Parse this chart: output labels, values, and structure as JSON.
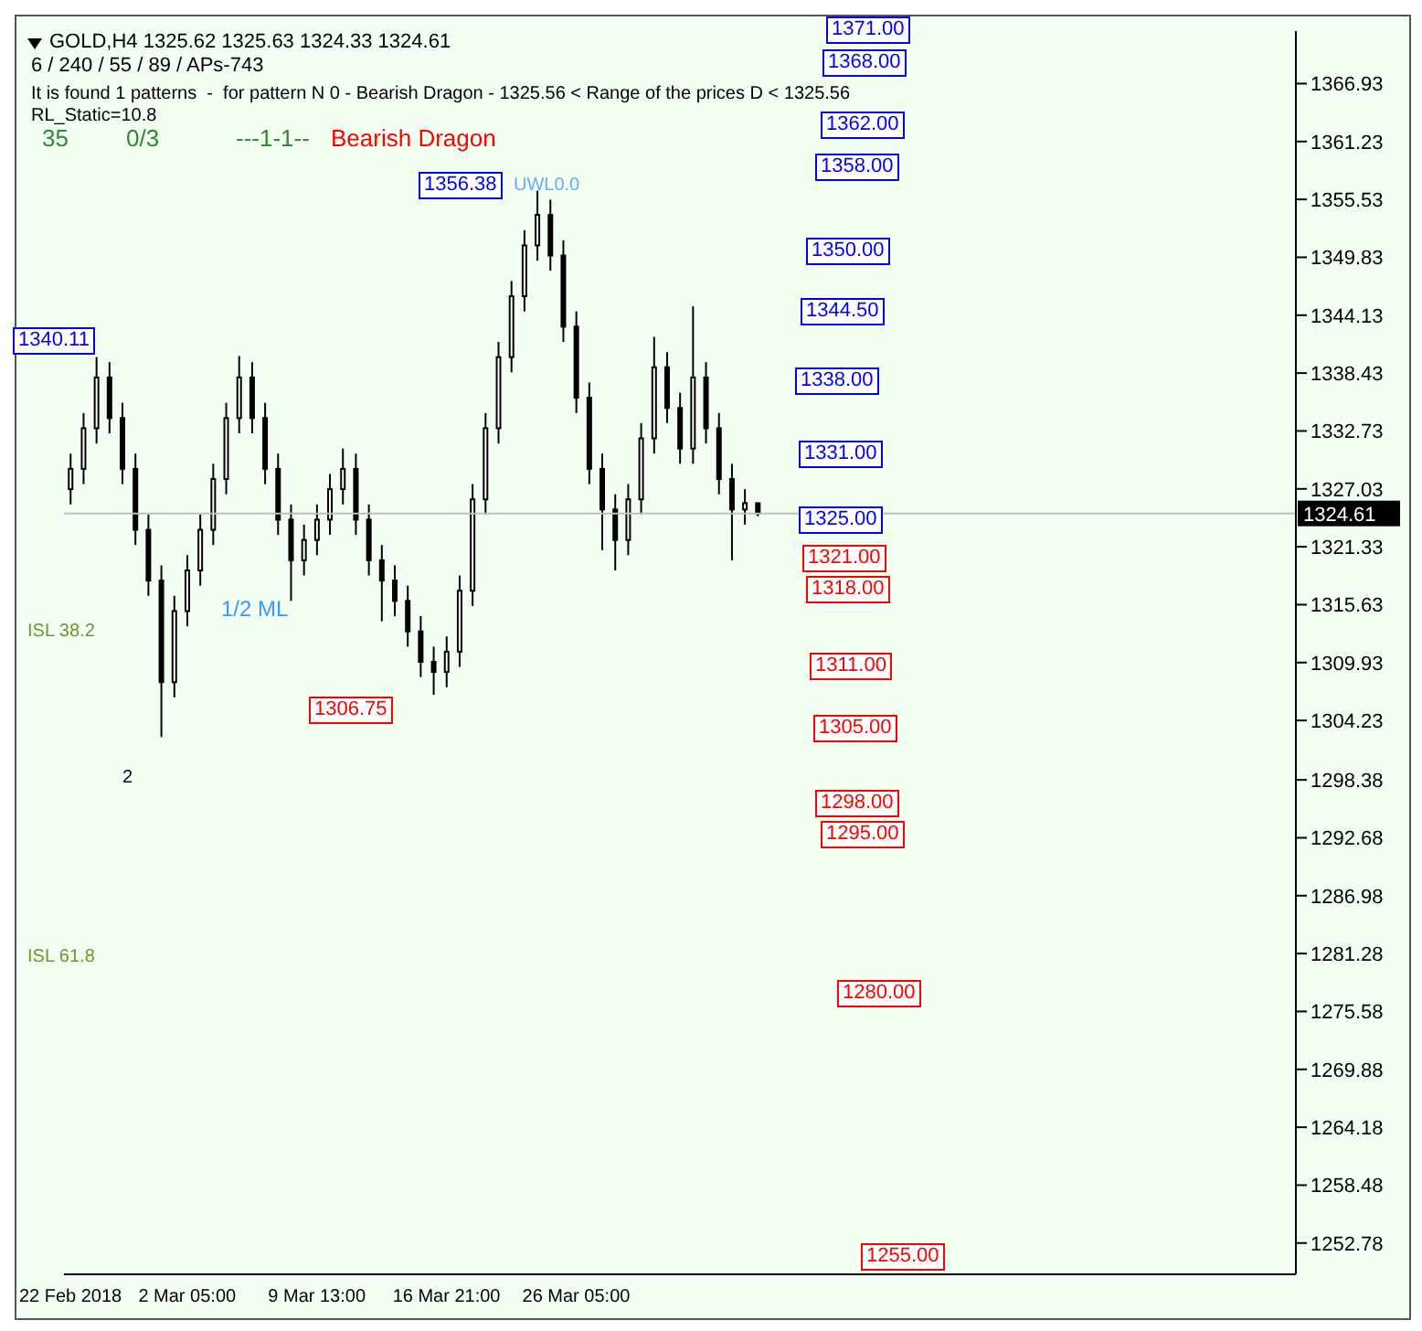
{
  "chart_data": {
    "type": "candlestick",
    "title": "GOLD,H4  1325.62 1325.63 1324.33 1324.61",
    "subtitle": "6 / 240 / 55 / 89 / APs-743",
    "categories": [
      "22 Feb 2018",
      null,
      null,
      null,
      null,
      null,
      null,
      null,
      null,
      "2 Mar 05:00",
      null,
      null,
      null,
      null,
      null,
      null,
      null,
      null,
      null,
      "9 Mar 13:00",
      null,
      null,
      null,
      null,
      null,
      null,
      null,
      null,
      null,
      "16 Mar 21:00",
      null,
      null,
      null,
      null,
      null,
      null,
      null,
      null,
      null,
      "26 Mar 05:00",
      null,
      null,
      null,
      null,
      null,
      null,
      null,
      null,
      null,
      null,
      null,
      null,
      null,
      null,
      null,
      null,
      null,
      null,
      null,
      null,
      null,
      null,
      null,
      null,
      null,
      null,
      null,
      null,
      null,
      null,
      null,
      null,
      null,
      null,
      null,
      null,
      null,
      null,
      null,
      null,
      null,
      null,
      null,
      null,
      null,
      null,
      null,
      null,
      null,
      null,
      null,
      null,
      null,
      null,
      null
    ],
    "ohlc": [
      [
        1327,
        1330.5,
        1325.5,
        1329
      ],
      [
        1329,
        1334.5,
        1327.5,
        1333
      ],
      [
        1333,
        1340,
        1331.5,
        1338
      ],
      [
        1338,
        1339.5,
        1332.5,
        1334
      ],
      [
        1334,
        1335.5,
        1327.5,
        1329
      ],
      [
        1329,
        1330.5,
        1321.5,
        1323
      ],
      [
        1323,
        1324.5,
        1316.5,
        1318
      ],
      [
        1318,
        1319.5,
        1302.6,
        1308
      ],
      [
        1308,
        1316.5,
        1306.5,
        1315
      ],
      [
        1315,
        1320.5,
        1313.5,
        1319
      ],
      [
        1319,
        1324.5,
        1317.5,
        1323
      ],
      [
        1323,
        1329.5,
        1321.5,
        1328
      ],
      [
        1328,
        1335.5,
        1326.5,
        1334
      ],
      [
        1334,
        1340.11,
        1332.5,
        1338
      ],
      [
        1338,
        1339.5,
        1332.5,
        1334
      ],
      [
        1334,
        1335.5,
        1327.5,
        1329
      ],
      [
        1329,
        1330.5,
        1322.5,
        1324
      ],
      [
        1324,
        1325.5,
        1316,
        1320
      ],
      [
        1320,
        1323.5,
        1318.5,
        1322
      ],
      [
        1322,
        1325.5,
        1320.5,
        1324
      ],
      [
        1324,
        1328.5,
        1322.5,
        1327
      ],
      [
        1327,
        1331,
        1325.5,
        1329
      ],
      [
        1329,
        1330.5,
        1322.5,
        1324
      ],
      [
        1324,
        1325.5,
        1318.5,
        1320
      ],
      [
        1320,
        1321.5,
        1314,
        1318
      ],
      [
        1318,
        1319.5,
        1314.5,
        1316
      ],
      [
        1316,
        1317.5,
        1311.5,
        1313
      ],
      [
        1313,
        1314.5,
        1308.5,
        1310
      ],
      [
        1310,
        1311.5,
        1306.75,
        1309
      ],
      [
        1309,
        1312.5,
        1307.5,
        1311
      ],
      [
        1311,
        1318.5,
        1309.5,
        1317
      ],
      [
        1317,
        1327.5,
        1315.5,
        1326
      ],
      [
        1326,
        1334.5,
        1324.5,
        1333
      ],
      [
        1333,
        1341.5,
        1331.5,
        1340
      ],
      [
        1340,
        1347.5,
        1338.5,
        1346
      ],
      [
        1346,
        1352.5,
        1344.5,
        1351
      ],
      [
        1351,
        1356.38,
        1349.5,
        1354
      ],
      [
        1354,
        1355.5,
        1348.5,
        1350
      ],
      [
        1350,
        1351.5,
        1341.5,
        1343
      ],
      [
        1343,
        1344.5,
        1334.5,
        1336
      ],
      [
        1336,
        1337.5,
        1327.5,
        1329
      ],
      [
        1329,
        1330.5,
        1321,
        1325
      ],
      [
        1325,
        1326.5,
        1319,
        1322
      ],
      [
        1322,
        1327.5,
        1320.5,
        1326
      ],
      [
        1326,
        1333.5,
        1324.5,
        1332
      ],
      [
        1332,
        1342,
        1330.5,
        1339
      ],
      [
        1339,
        1340.5,
        1333.5,
        1335
      ],
      [
        1335,
        1336.5,
        1329.5,
        1331
      ],
      [
        1331,
        1345,
        1329.5,
        1338
      ],
      [
        1338,
        1339.5,
        1331.5,
        1333
      ],
      [
        1333,
        1334.5,
        1326.5,
        1328
      ],
      [
        1328,
        1329.5,
        1320,
        1325
      ],
      [
        1325,
        1327,
        1323.5,
        1325.62
      ],
      [
        1325.62,
        1325.63,
        1324.33,
        1324.61
      ],
      null,
      null,
      null,
      null,
      null,
      null,
      null,
      null,
      null,
      null,
      null,
      null,
      null,
      null,
      null,
      null,
      null,
      null,
      null,
      null,
      null,
      null,
      null,
      null,
      null,
      null,
      null,
      null,
      null,
      null,
      null,
      null,
      null,
      null,
      null,
      null,
      null,
      null,
      null,
      null,
      null
    ],
    "color": "#000000",
    "ylim": [
      1249.7,
      1372.1
    ],
    "yticks": [
      1366.93,
      1361.23,
      1355.53,
      1349.83,
      1344.13,
      1338.43,
      1332.73,
      1327.03,
      1321.33,
      1315.63,
      1309.93,
      1304.23,
      1298.38,
      1292.68,
      1286.98,
      1281.28,
      1275.58,
      1269.88,
      1264.18,
      1258.48,
      1252.78
    ],
    "ref_lines": [
      {
        "axis": "y",
        "value": 1324.61,
        "label": "1324.61",
        "color": "#c0c0c0"
      }
    ],
    "annotations": [
      "It is found 1 patterns  -  for pattern N 0 - Bearish Dragon - 1325.56 < Range of the prices D < 1325.56",
      "RL_Static=10.8",
      "35",
      "0/3",
      "---1-1--",
      "Bearish Dragon",
      "2",
      "ISL 38.2",
      "ISL 61.8",
      "1/2 ML",
      "UWL0.0",
      "1340.11",
      "1356.38",
      "1306.75",
      "1371.00",
      "1368.00",
      "1362.00",
      "1358.00",
      "1350.00",
      "1344.50",
      "1338.00",
      "1331.00",
      "1325.00",
      "1321.00",
      "1318.00",
      "1311.00",
      "1305.00",
      "1298.00",
      "1295.00",
      "1280.00",
      "1255.00"
    ]
  }
}
